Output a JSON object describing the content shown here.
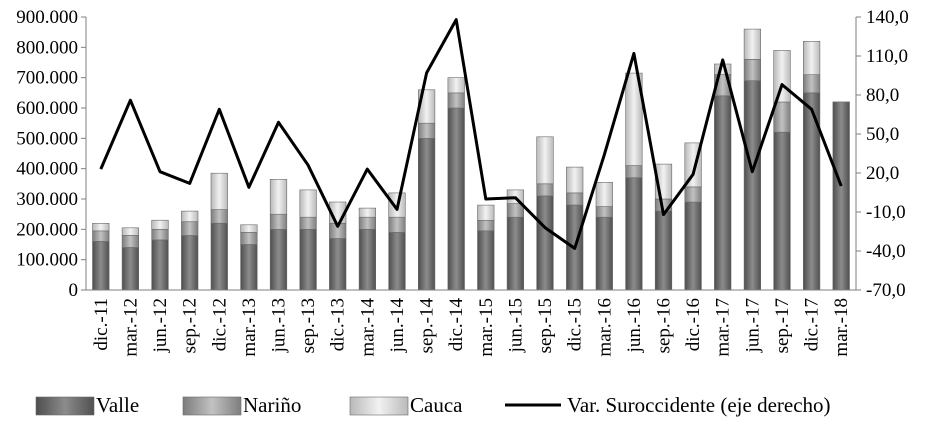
{
  "chart_data": {
    "type": "bar",
    "stacked": true,
    "categories": [
      "dic.-11",
      "mar.-12",
      "jun.-12",
      "sep.-12",
      "dic.-12",
      "mar.-13",
      "jun.-13",
      "sep.-13",
      "dic.-13",
      "mar.-14",
      "jun.-14",
      "sep.-14",
      "dic.-14",
      "mar.-15",
      "jun.-15",
      "sep.-15",
      "dic.-15",
      "mar.-16",
      "jun.-16",
      "sep.-16",
      "dic.-16",
      "mar.-17",
      "jun.-17",
      "sep.-17",
      "dic.-17",
      "mar.-18"
    ],
    "series": [
      {
        "name": "Valle",
        "type": "bar",
        "axis": "left",
        "color": "#6a6a6a",
        "values": [
          160000,
          140000,
          165000,
          180000,
          220000,
          150000,
          200000,
          200000,
          170000,
          200000,
          190000,
          500000,
          600000,
          195000,
          240000,
          310000,
          280000,
          240000,
          370000,
          260000,
          290000,
          640000,
          690000,
          520000,
          650000,
          620000
        ]
      },
      {
        "name": "Nariño",
        "type": "bar",
        "axis": "left",
        "color": "#9a9a9a",
        "values": [
          35000,
          40000,
          35000,
          45000,
          45000,
          40000,
          50000,
          40000,
          50000,
          40000,
          50000,
          50000,
          50000,
          35000,
          45000,
          40000,
          40000,
          35000,
          40000,
          40000,
          50000,
          70000,
          70000,
          100000,
          60000,
          0
        ]
      },
      {
        "name": "Cauca",
        "type": "bar",
        "axis": "left",
        "color": "#d2d2d2",
        "values": [
          25000,
          25000,
          30000,
          35000,
          120000,
          25000,
          115000,
          90000,
          70000,
          30000,
          80000,
          110000,
          50000,
          50000,
          45000,
          155000,
          85000,
          80000,
          305000,
          115000,
          145000,
          35000,
          100000,
          170000,
          110000,
          0
        ]
      },
      {
        "name": "Var. Suroccidente (eje derecho)",
        "type": "line",
        "axis": "right",
        "color": "#000000",
        "values": [
          23,
          76,
          21,
          12,
          69,
          9,
          59,
          26,
          -21,
          23,
          -8,
          97,
          138,
          0,
          1,
          -22,
          -38,
          34,
          112,
          -12,
          19,
          107,
          21,
          88,
          69,
          10
        ]
      }
    ],
    "y_left": {
      "min": 0,
      "max": 900000,
      "tick_labels": [
        "0",
        "100.000",
        "200.000",
        "300.000",
        "400.000",
        "500.000",
        "600.000",
        "700.000",
        "800.000",
        "900.000"
      ]
    },
    "y_right": {
      "min": -70,
      "max": 140,
      "tick_labels": [
        "-70,0",
        "-40,0",
        "-10,0",
        "20,0",
        "50,0",
        "80,0",
        "110,0",
        "140,0"
      ]
    },
    "grid": false,
    "legend_position": "bottom"
  }
}
